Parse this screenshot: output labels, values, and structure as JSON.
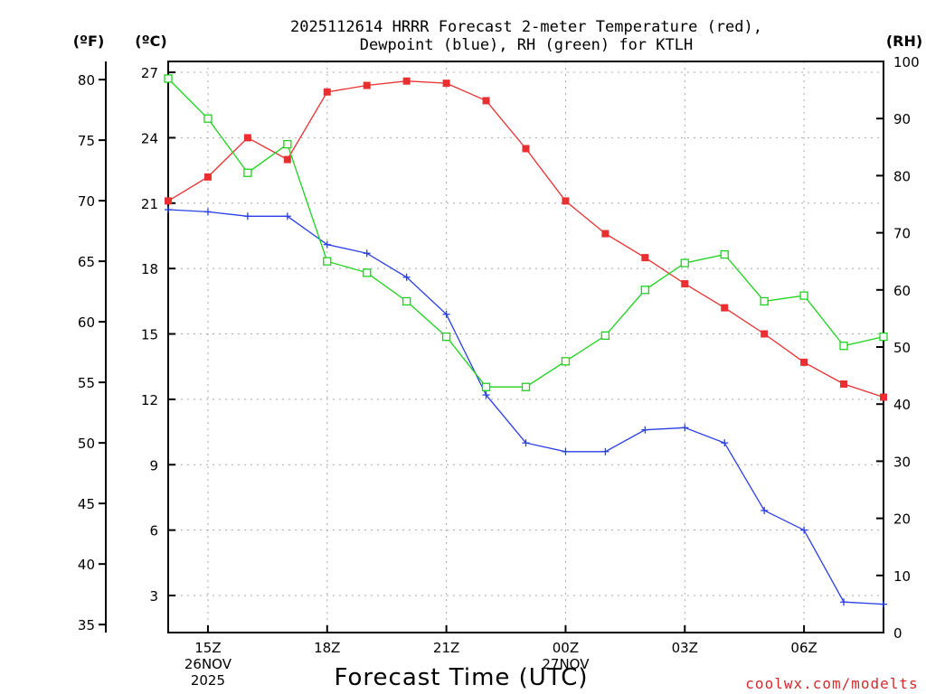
{
  "chart_data": {
    "type": "line",
    "title_lines": [
      "2025112614 HRRR Forecast 2-meter Temperature (red),",
      "Dewpoint (blue), RH (green) for KTLH"
    ],
    "xlabel": "Forecast Time (UTC)",
    "credit": "coolwx.com/modelts",
    "units": {
      "fahrenheit": "(ºF)",
      "celsius": "(ºC)",
      "rh": "(RH)"
    },
    "x_hours": [
      14,
      15,
      16,
      17,
      18,
      19,
      20,
      21,
      22,
      23,
      24,
      25,
      26,
      27,
      28,
      29,
      30,
      31,
      32
    ],
    "x_range": [
      14,
      32
    ],
    "x_ticks": [
      {
        "hour": 15,
        "lines": [
          "15Z",
          "26NOV",
          "2025"
        ]
      },
      {
        "hour": 18,
        "lines": [
          "18Z"
        ]
      },
      {
        "hour": 21,
        "lines": [
          "21Z"
        ]
      },
      {
        "hour": 24,
        "lines": [
          "00Z",
          "27NOV"
        ]
      },
      {
        "hour": 27,
        "lines": [
          "03Z"
        ]
      },
      {
        "hour": 30,
        "lines": [
          "06Z"
        ]
      }
    ],
    "celsius_axis": {
      "range": [
        1.3,
        27.5
      ],
      "ticks": [
        "3",
        "6",
        "9",
        "12",
        "15",
        "18",
        "21",
        "24",
        "27"
      ]
    },
    "fahrenheit_axis": {
      "ticks": [
        "35",
        "40",
        "45",
        "50",
        "55",
        "60",
        "65",
        "70",
        "75",
        "80"
      ]
    },
    "rh_axis": {
      "range": [
        0,
        100
      ],
      "ticks": [
        "0",
        "10",
        "20",
        "30",
        "40",
        "50",
        "60",
        "70",
        "80",
        "90",
        "100"
      ]
    },
    "series": [
      {
        "name": "Temperature",
        "units": "C",
        "color": "#e83030",
        "marker": "filled-square",
        "values": [
          21.1,
          22.2,
          24.0,
          23.0,
          26.1,
          26.4,
          26.6,
          26.5,
          25.7,
          23.5,
          21.1,
          19.6,
          18.5,
          17.3,
          16.2,
          15.0,
          13.7,
          12.7,
          12.1
        ]
      },
      {
        "name": "Dewpoint",
        "units": "C",
        "color": "#2a3ee8",
        "marker": "plus",
        "values": [
          20.7,
          20.6,
          20.4,
          20.4,
          19.1,
          18.7,
          17.6,
          15.9,
          12.2,
          10.0,
          9.6,
          9.6,
          10.6,
          10.7,
          10.0,
          6.9,
          6.0,
          2.7,
          2.6
        ]
      },
      {
        "name": "RH",
        "units": "%",
        "color": "#1ed11e",
        "marker": "open-square",
        "values": [
          97.0,
          90.0,
          80.5,
          85.5,
          65.0,
          63.0,
          58.0,
          51.8,
          43.0,
          43.0,
          47.5,
          52.0,
          60.0,
          64.7,
          66.2,
          58.0,
          59.0,
          50.2,
          51.8
        ]
      }
    ]
  }
}
